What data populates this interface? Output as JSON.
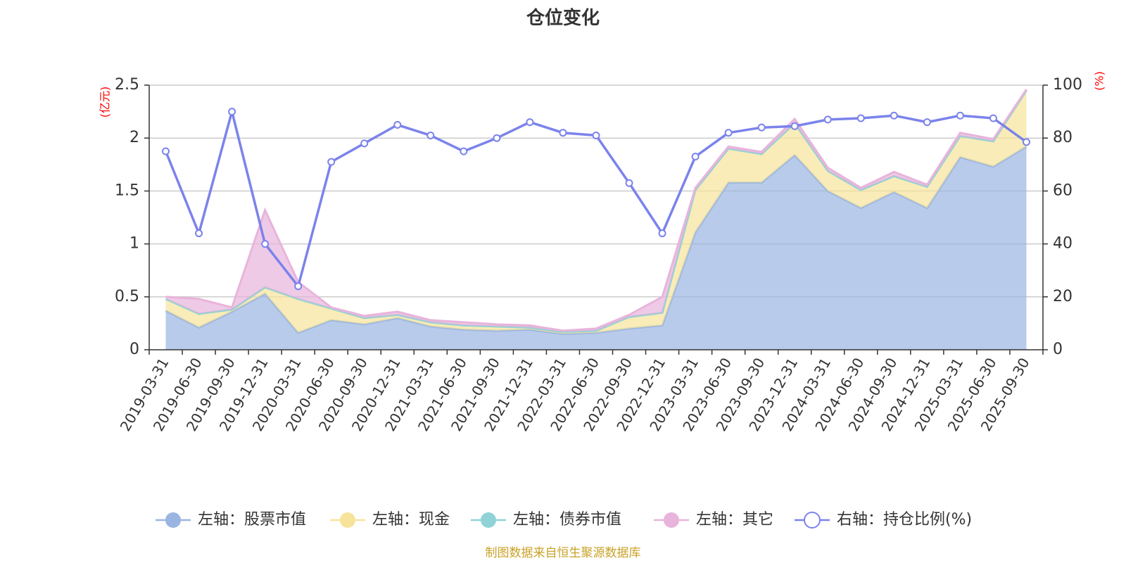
{
  "chart_data": {
    "type": "area",
    "title": "仓位变化",
    "x": [
      "2019-03-31",
      "2019-06-30",
      "2019-09-30",
      "2019-12-31",
      "2020-03-31",
      "2020-06-30",
      "2020-09-30",
      "2020-12-31",
      "2021-03-31",
      "2021-06-30",
      "2021-09-30",
      "2021-12-31",
      "2022-03-31",
      "2022-06-30",
      "2022-09-30",
      "2022-12-31",
      "2023-03-31",
      "2023-06-30",
      "2023-09-30",
      "2023-12-31",
      "2024-03-31",
      "2024-06-30",
      "2024-09-30",
      "2024-12-31",
      "2025-03-31",
      "2025-06-30",
      "2025-09-30"
    ],
    "left_axis": {
      "unit": "(亿元)",
      "ylim": [
        0,
        2.5
      ],
      "ticks": [
        "0",
        "0.5",
        "1",
        "1.5",
        "2",
        "2.5"
      ]
    },
    "right_axis": {
      "unit": "(%)",
      "ylim": [
        0,
        100
      ],
      "ticks": [
        "0",
        "20",
        "40",
        "60",
        "80",
        "100"
      ]
    },
    "grid": true,
    "legend_position": "bottom",
    "series": [
      {
        "name": "左轴：股票市值",
        "axis": "left",
        "stacked": true,
        "color": "#9ab5e1",
        "values": [
          0.37,
          0.21,
          0.36,
          0.53,
          0.16,
          0.28,
          0.24,
          0.3,
          0.22,
          0.19,
          0.18,
          0.19,
          0.15,
          0.16,
          0.2,
          0.23,
          1.11,
          1.58,
          1.58,
          1.84,
          1.5,
          1.34,
          1.49,
          1.34,
          1.82,
          1.73,
          1.92
        ]
      },
      {
        "name": "左轴：现金",
        "axis": "left",
        "stacked": true,
        "color": "#f7e49a",
        "values": [
          0.11,
          0.13,
          0.02,
          0.06,
          0.32,
          0.11,
          0.06,
          0.03,
          0.04,
          0.04,
          0.04,
          0.02,
          0.02,
          0.02,
          0.11,
          0.12,
          0.4,
          0.32,
          0.27,
          0.3,
          0.19,
          0.17,
          0.15,
          0.2,
          0.2,
          0.24,
          0.53
        ]
      },
      {
        "name": "左轴：债券市值",
        "axis": "left",
        "stacked": true,
        "color": "#8fd3d6",
        "values": [
          0,
          0,
          0,
          0,
          0,
          0,
          0,
          0,
          0,
          0,
          0,
          0,
          0,
          0,
          0,
          0,
          0,
          0,
          0,
          0,
          0,
          0,
          0,
          0,
          0,
          0,
          0
        ]
      },
      {
        "name": "左轴：其它",
        "axis": "left",
        "stacked": true,
        "color": "#e8b4db",
        "values": [
          0.02,
          0.14,
          0.02,
          0.73,
          0.16,
          0.01,
          0.02,
          0.03,
          0.02,
          0.03,
          0.02,
          0.02,
          0.01,
          0.02,
          0.02,
          0.15,
          0.02,
          0.02,
          0.02,
          0.04,
          0.03,
          0.02,
          0.04,
          0.02,
          0.03,
          0.02,
          0.01
        ]
      },
      {
        "name": "右轴：持仓比例(%)",
        "axis": "right",
        "stacked": false,
        "color": "#7b83eb",
        "values": [
          75,
          44,
          90,
          40,
          24,
          71,
          78,
          85,
          81,
          75,
          80,
          86,
          82,
          81,
          63,
          44,
          73,
          82,
          84,
          84.5,
          87,
          87.5,
          88.5,
          86,
          88.5,
          87.5,
          78.5
        ]
      }
    ]
  },
  "source_note": "制图数据来自恒生聚源数据库"
}
